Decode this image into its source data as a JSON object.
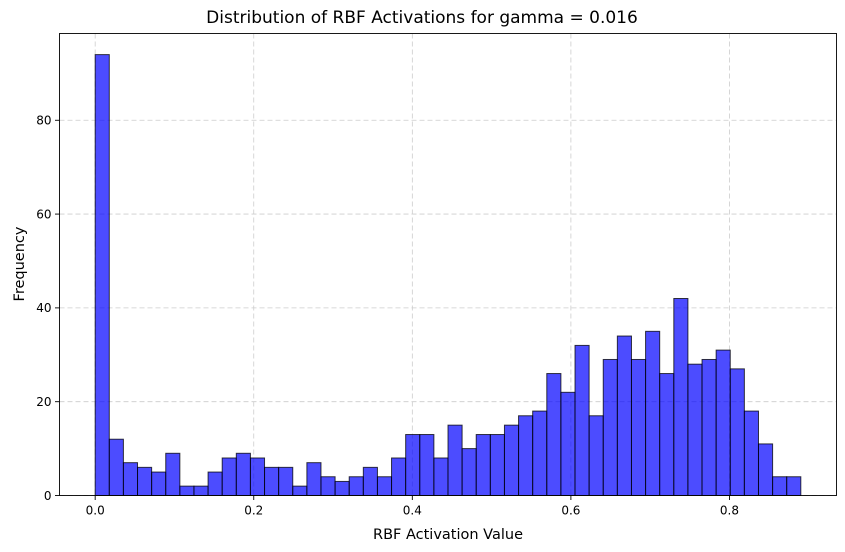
{
  "chart_data": {
    "type": "bar",
    "title": "Distribution of RBF Activations for gamma = 0.016",
    "xlabel": "RBF Activation Value",
    "ylabel": "Frequency",
    "xlim": [
      -0.045,
      0.935
    ],
    "ylim": [
      0,
      98.5
    ],
    "xticks": [
      0.0,
      0.2,
      0.4,
      0.6,
      0.8
    ],
    "xtick_labels": [
      "0.0",
      "0.2",
      "0.4",
      "0.6",
      "0.8"
    ],
    "yticks": [
      0,
      20,
      40,
      60,
      80
    ],
    "ytick_labels": [
      "0",
      "20",
      "40",
      "60",
      "80"
    ],
    "grid": true,
    "bin_start": 0.0,
    "bin_width": 0.0178,
    "values": [
      94,
      12,
      7,
      6,
      5,
      9,
      2,
      2,
      5,
      8,
      9,
      8,
      6,
      6,
      2,
      7,
      4,
      3,
      4,
      6,
      4,
      8,
      13,
      13,
      8,
      15,
      10,
      13,
      13,
      15,
      17,
      18,
      26,
      22,
      32,
      17,
      29,
      34,
      29,
      35,
      26,
      42,
      28,
      29,
      31,
      27,
      18,
      11,
      4,
      4
    ],
    "colors": {
      "bar_fill": "#0000ff",
      "bar_edge": "#000000"
    }
  }
}
